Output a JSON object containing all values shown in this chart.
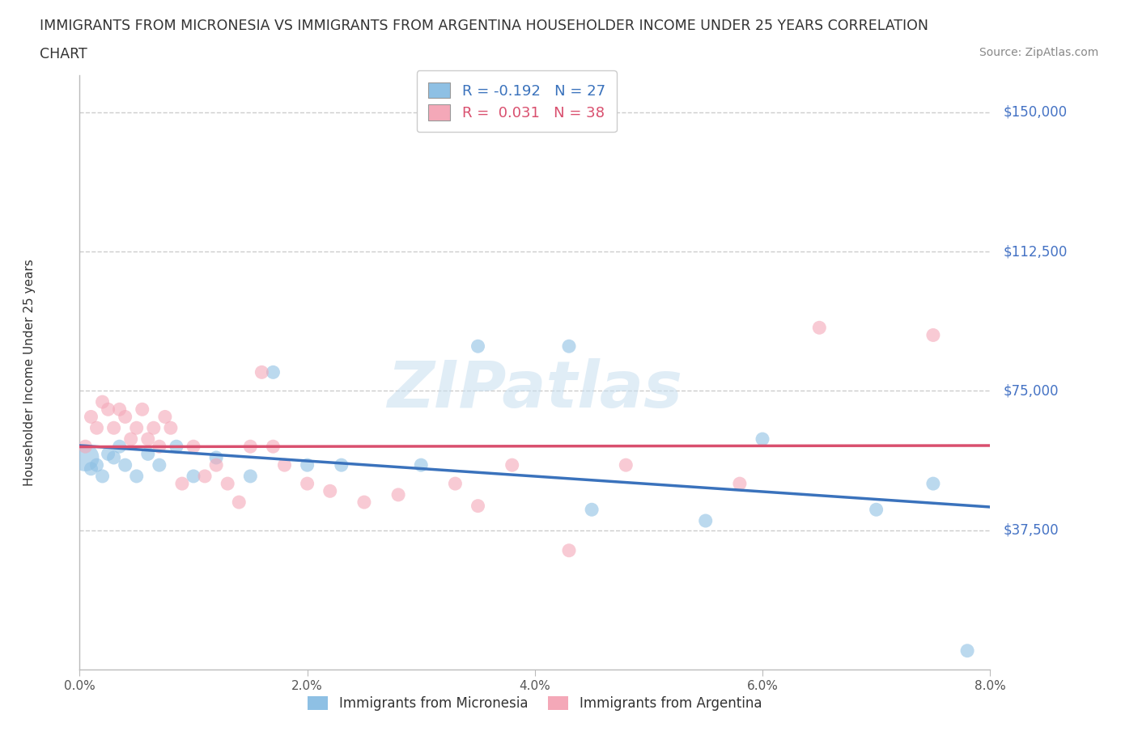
{
  "title_line1": "IMMIGRANTS FROM MICRONESIA VS IMMIGRANTS FROM ARGENTINA HOUSEHOLDER INCOME UNDER 25 YEARS CORRELATION",
  "title_line2": "CHART",
  "source": "Source: ZipAtlas.com",
  "ylabel": "Householder Income Under 25 years",
  "y_ticks": [
    0,
    37500,
    75000,
    112500,
    150000
  ],
  "y_tick_labels": [
    "",
    "$37,500",
    "$75,000",
    "$112,500",
    "$150,000"
  ],
  "x_min": 0.0,
  "x_max": 8.0,
  "y_min": 0,
  "y_max": 160000,
  "micronesia_R": -0.192,
  "micronesia_N": 27,
  "argentina_R": 0.031,
  "argentina_N": 38,
  "blue_color": "#8ec0e4",
  "pink_color": "#f4a8b8",
  "blue_line_color": "#3a72bc",
  "pink_line_color": "#d94f6e",
  "title_color": "#333333",
  "y_tick_color": "#4472c4",
  "watermark": "ZIPatlas",
  "micronesia_x": [
    0.05,
    0.1,
    0.15,
    0.2,
    0.25,
    0.3,
    0.35,
    0.4,
    0.5,
    0.6,
    0.7,
    0.85,
    1.0,
    1.2,
    1.5,
    1.7,
    2.0,
    2.3,
    3.0,
    3.5,
    4.3,
    4.5,
    5.5,
    6.0,
    7.0,
    7.5,
    7.8
  ],
  "micronesia_y": [
    57000,
    54000,
    55000,
    52000,
    58000,
    57000,
    60000,
    55000,
    52000,
    58000,
    55000,
    60000,
    52000,
    57000,
    52000,
    80000,
    55000,
    55000,
    55000,
    87000,
    87000,
    43000,
    40000,
    62000,
    43000,
    50000,
    5000
  ],
  "argentina_x": [
    0.05,
    0.1,
    0.15,
    0.2,
    0.25,
    0.3,
    0.35,
    0.4,
    0.45,
    0.5,
    0.55,
    0.6,
    0.65,
    0.7,
    0.75,
    0.8,
    0.9,
    1.0,
    1.1,
    1.2,
    1.3,
    1.4,
    1.5,
    1.6,
    1.7,
    1.8,
    2.0,
    2.2,
    2.5,
    2.8,
    3.3,
    3.5,
    3.8,
    4.3,
    4.8,
    5.8,
    6.5,
    7.5
  ],
  "argentina_y": [
    60000,
    68000,
    65000,
    72000,
    70000,
    65000,
    70000,
    68000,
    62000,
    65000,
    70000,
    62000,
    65000,
    60000,
    68000,
    65000,
    50000,
    60000,
    52000,
    55000,
    50000,
    45000,
    60000,
    80000,
    60000,
    55000,
    50000,
    48000,
    45000,
    47000,
    50000,
    44000,
    55000,
    32000,
    55000,
    50000,
    92000,
    90000
  ],
  "micronesia_size": [
    600,
    150,
    150,
    150,
    150,
    150,
    150,
    150,
    150,
    150,
    150,
    150,
    150,
    150,
    150,
    150,
    150,
    150,
    150,
    150,
    150,
    150,
    150,
    150,
    150,
    150,
    150
  ],
  "argentina_size": [
    150,
    150,
    150,
    150,
    150,
    150,
    150,
    150,
    150,
    150,
    150,
    150,
    150,
    150,
    150,
    150,
    150,
    150,
    150,
    150,
    150,
    150,
    150,
    150,
    150,
    150,
    150,
    150,
    150,
    150,
    150,
    150,
    150,
    150,
    150,
    150,
    150,
    150
  ]
}
